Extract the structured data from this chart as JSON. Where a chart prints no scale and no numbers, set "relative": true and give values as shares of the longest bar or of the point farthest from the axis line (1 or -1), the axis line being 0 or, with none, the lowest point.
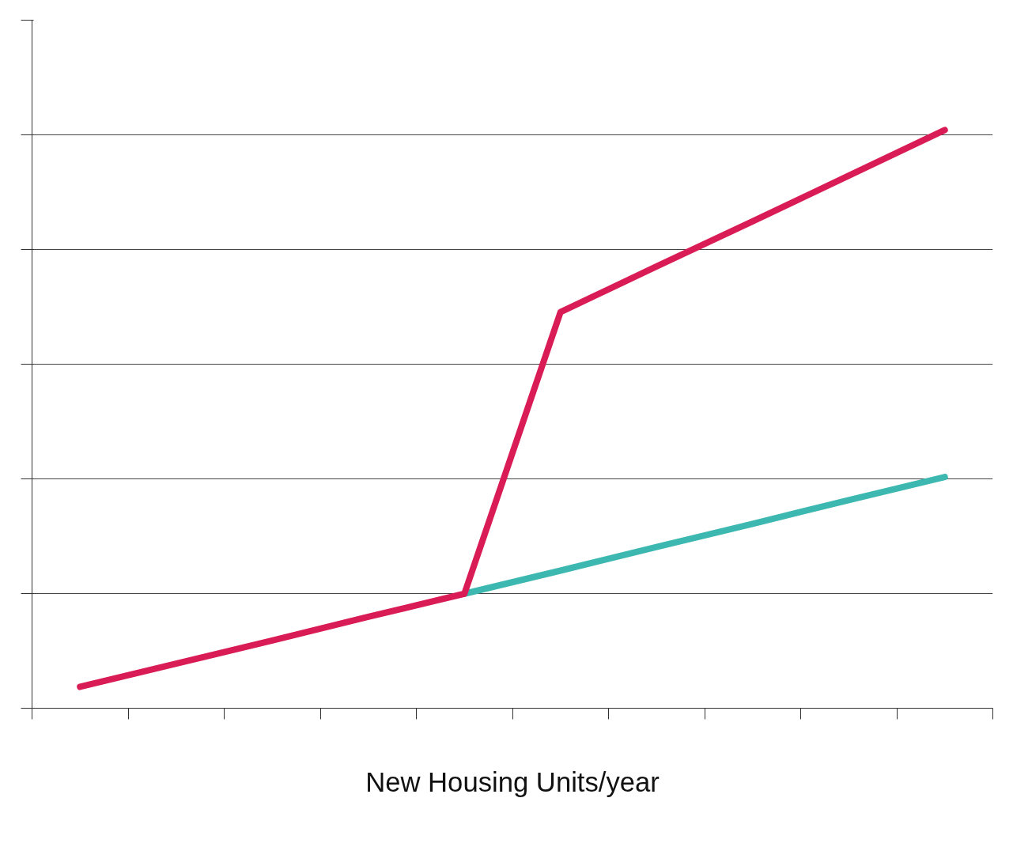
{
  "chart_data": {
    "type": "line",
    "relative": true,
    "xlabel": "New Housing Units/year",
    "categories": [
      null,
      null,
      null,
      null,
      null,
      null,
      null,
      null,
      null,
      null
    ],
    "series": [
      {
        "color": "#3db8b0",
        "values": [
          null,
          null,
          null,
          null,
          0.198,
          0.238,
          0.279,
          0.319,
          0.36,
          0.4
        ]
      },
      {
        "color": "#d91c55",
        "values": [
          0.037,
          0.077,
          0.117,
          0.158,
          0.198,
          0.685,
          0.764,
          0.842,
          0.921,
          1.0
        ]
      }
    ],
    "grid": "y",
    "marker": "none",
    "line_style": "solid"
  }
}
